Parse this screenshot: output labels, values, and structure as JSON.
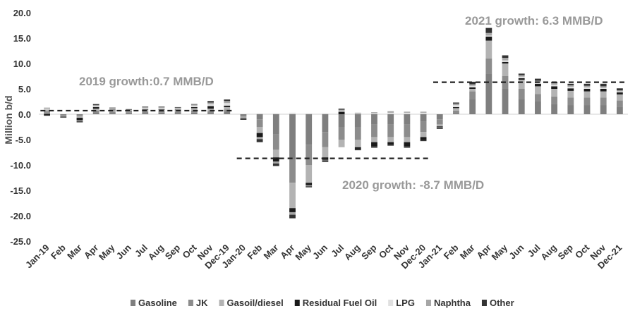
{
  "chart_data": {
    "type": "bar",
    "stacked": true,
    "ylabel": "Million b/d",
    "ylim": [
      -25,
      20
    ],
    "yticks": [
      20,
      15,
      10,
      5,
      0,
      -5,
      -10,
      -15,
      -20,
      -25
    ],
    "ytick_labels": [
      "20.0",
      "15.0",
      "10.0",
      "5.0",
      "0.0",
      "-5.0",
      "-10.0",
      "-15.0",
      "-20.0",
      "-25.0"
    ],
    "categories": [
      "Jan-19",
      "Feb",
      "Mar",
      "Apr",
      "May",
      "Jun",
      "Jul",
      "Aug",
      "Sep",
      "Oct",
      "Nov",
      "Dec-19",
      "Jan-20",
      "Feb",
      "Mar",
      "Apr",
      "May",
      "Jun",
      "Jul",
      "Aug",
      "Sep",
      "Oct",
      "Nov",
      "Dec-20",
      "Jan-21",
      "Feb",
      "Mar",
      "Apr",
      "May",
      "Jun",
      "Jul",
      "Aug",
      "Sep",
      "Oct",
      "Nov",
      "Dec-21"
    ],
    "series": [
      {
        "name": "Gasoline",
        "color": "#7f7f7f",
        "values": [
          0.3,
          -0.2,
          -0.2,
          0.4,
          0.2,
          0.2,
          0.2,
          0.3,
          0.2,
          0.3,
          0.2,
          0.5,
          -0.3,
          -1.0,
          -4.0,
          -9.0,
          -6.0,
          -3.5,
          -2.5,
          -2.5,
          -2.0,
          -2.0,
          -2.0,
          -1.5,
          -1.0,
          0.2,
          3.0,
          8.0,
          5.0,
          3.0,
          2.5,
          2.0,
          1.8,
          1.8,
          1.8,
          1.5
        ]
      },
      {
        "name": "JK",
        "color": "#8c8c8c",
        "values": [
          0.3,
          -0.1,
          -0.2,
          0.3,
          0.3,
          0.2,
          0.3,
          0.3,
          0.3,
          0.4,
          0.4,
          0.4,
          -0.2,
          -1.5,
          -3.0,
          -4.5,
          -4.0,
          -3.0,
          -2.5,
          -2.5,
          -2.5,
          -2.5,
          -2.5,
          -2.0,
          -1.0,
          0.5,
          1.5,
          3.0,
          2.5,
          2.0,
          1.5,
          1.5,
          1.5,
          1.5,
          1.5,
          1.2
        ]
      },
      {
        "name": "Gasoil/diesel",
        "color": "#b3b3b3",
        "values": [
          0.3,
          -0.1,
          -0.3,
          0.4,
          0.3,
          0.2,
          0.4,
          0.3,
          0.3,
          0.5,
          0.5,
          0.5,
          -0.2,
          -1.2,
          -1.5,
          -5.0,
          -3.5,
          -2.0,
          -1.5,
          -1.5,
          -1.0,
          -1.0,
          -1.0,
          -1.0,
          -0.4,
          0.5,
          0.5,
          3.5,
          2.5,
          1.8,
          1.5,
          1.5,
          1.3,
          1.2,
          1.2,
          1.2
        ]
      },
      {
        "name": "Residual Fuel Oil",
        "color": "#1a1a1a",
        "values": [
          -0.2,
          -0.1,
          -0.5,
          0.3,
          0.1,
          0.1,
          0.1,
          0.1,
          0.1,
          0.2,
          0.5,
          0.3,
          -0.1,
          -0.8,
          -0.8,
          -0.8,
          -0.5,
          -0.5,
          0.5,
          -0.3,
          -0.8,
          -0.4,
          -0.8,
          -0.5,
          -0.2,
          0.2,
          0.3,
          0.8,
          0.3,
          0.3,
          0.5,
          0.5,
          0.5,
          0.5,
          0.5,
          0.4
        ]
      },
      {
        "name": "LPG",
        "color": "#e0e0e0",
        "values": [
          0.2,
          0.1,
          0.1,
          0.2,
          0.2,
          0.1,
          0.2,
          0.2,
          0.2,
          0.3,
          0.4,
          0.5,
          0.1,
          0.2,
          0.2,
          0.3,
          0.2,
          0.2,
          0.2,
          0.1,
          0.2,
          0.3,
          0.3,
          0.3,
          0.1,
          0.4,
          0.3,
          0.2,
          0.3,
          0.3,
          0.3,
          0.3,
          0.3,
          0.3,
          0.2,
          0.2
        ]
      },
      {
        "name": "Naphtha",
        "color": "#a6a6a6",
        "values": [
          0.2,
          -0.1,
          -0.2,
          0.2,
          0.1,
          0.1,
          0.2,
          0.2,
          0.2,
          0.2,
          0.3,
          0.4,
          -0.1,
          -0.4,
          -0.4,
          -0.5,
          -0.2,
          -0.1,
          0.2,
          0.2,
          0.2,
          0.3,
          0.2,
          0.2,
          -0.1,
          0.3,
          0.3,
          0.5,
          0.5,
          0.3,
          0.3,
          0.3,
          0.3,
          0.3,
          0.3,
          0.2
        ]
      },
      {
        "name": "Other",
        "color": "#333333",
        "values": [
          -0.1,
          -0.1,
          -0.2,
          0.2,
          0.1,
          0.1,
          0.1,
          0.1,
          0.1,
          0.1,
          0.3,
          0.3,
          -0.2,
          -0.6,
          -0.5,
          -0.7,
          -0.2,
          -0.3,
          0.2,
          -0.3,
          -0.3,
          -0.3,
          -0.3,
          -0.3,
          -0.2,
          0.2,
          0.5,
          1.0,
          0.5,
          0.3,
          0.4,
          0.3,
          0.3,
          0.4,
          0.5,
          0.4
        ]
      }
    ],
    "growth_lines": [
      {
        "label": "2019 growth:0.7 MMB/D",
        "value": 0.7,
        "from": 0,
        "to": 11
      },
      {
        "label": "2020 growth: -8.7 MMB/D",
        "value": -8.7,
        "from": 12,
        "to": 23
      },
      {
        "label": "2021 growth: 6.3 MMB/D",
        "value": 6.3,
        "from": 24,
        "to": 35
      }
    ],
    "legend_position": "bottom"
  }
}
